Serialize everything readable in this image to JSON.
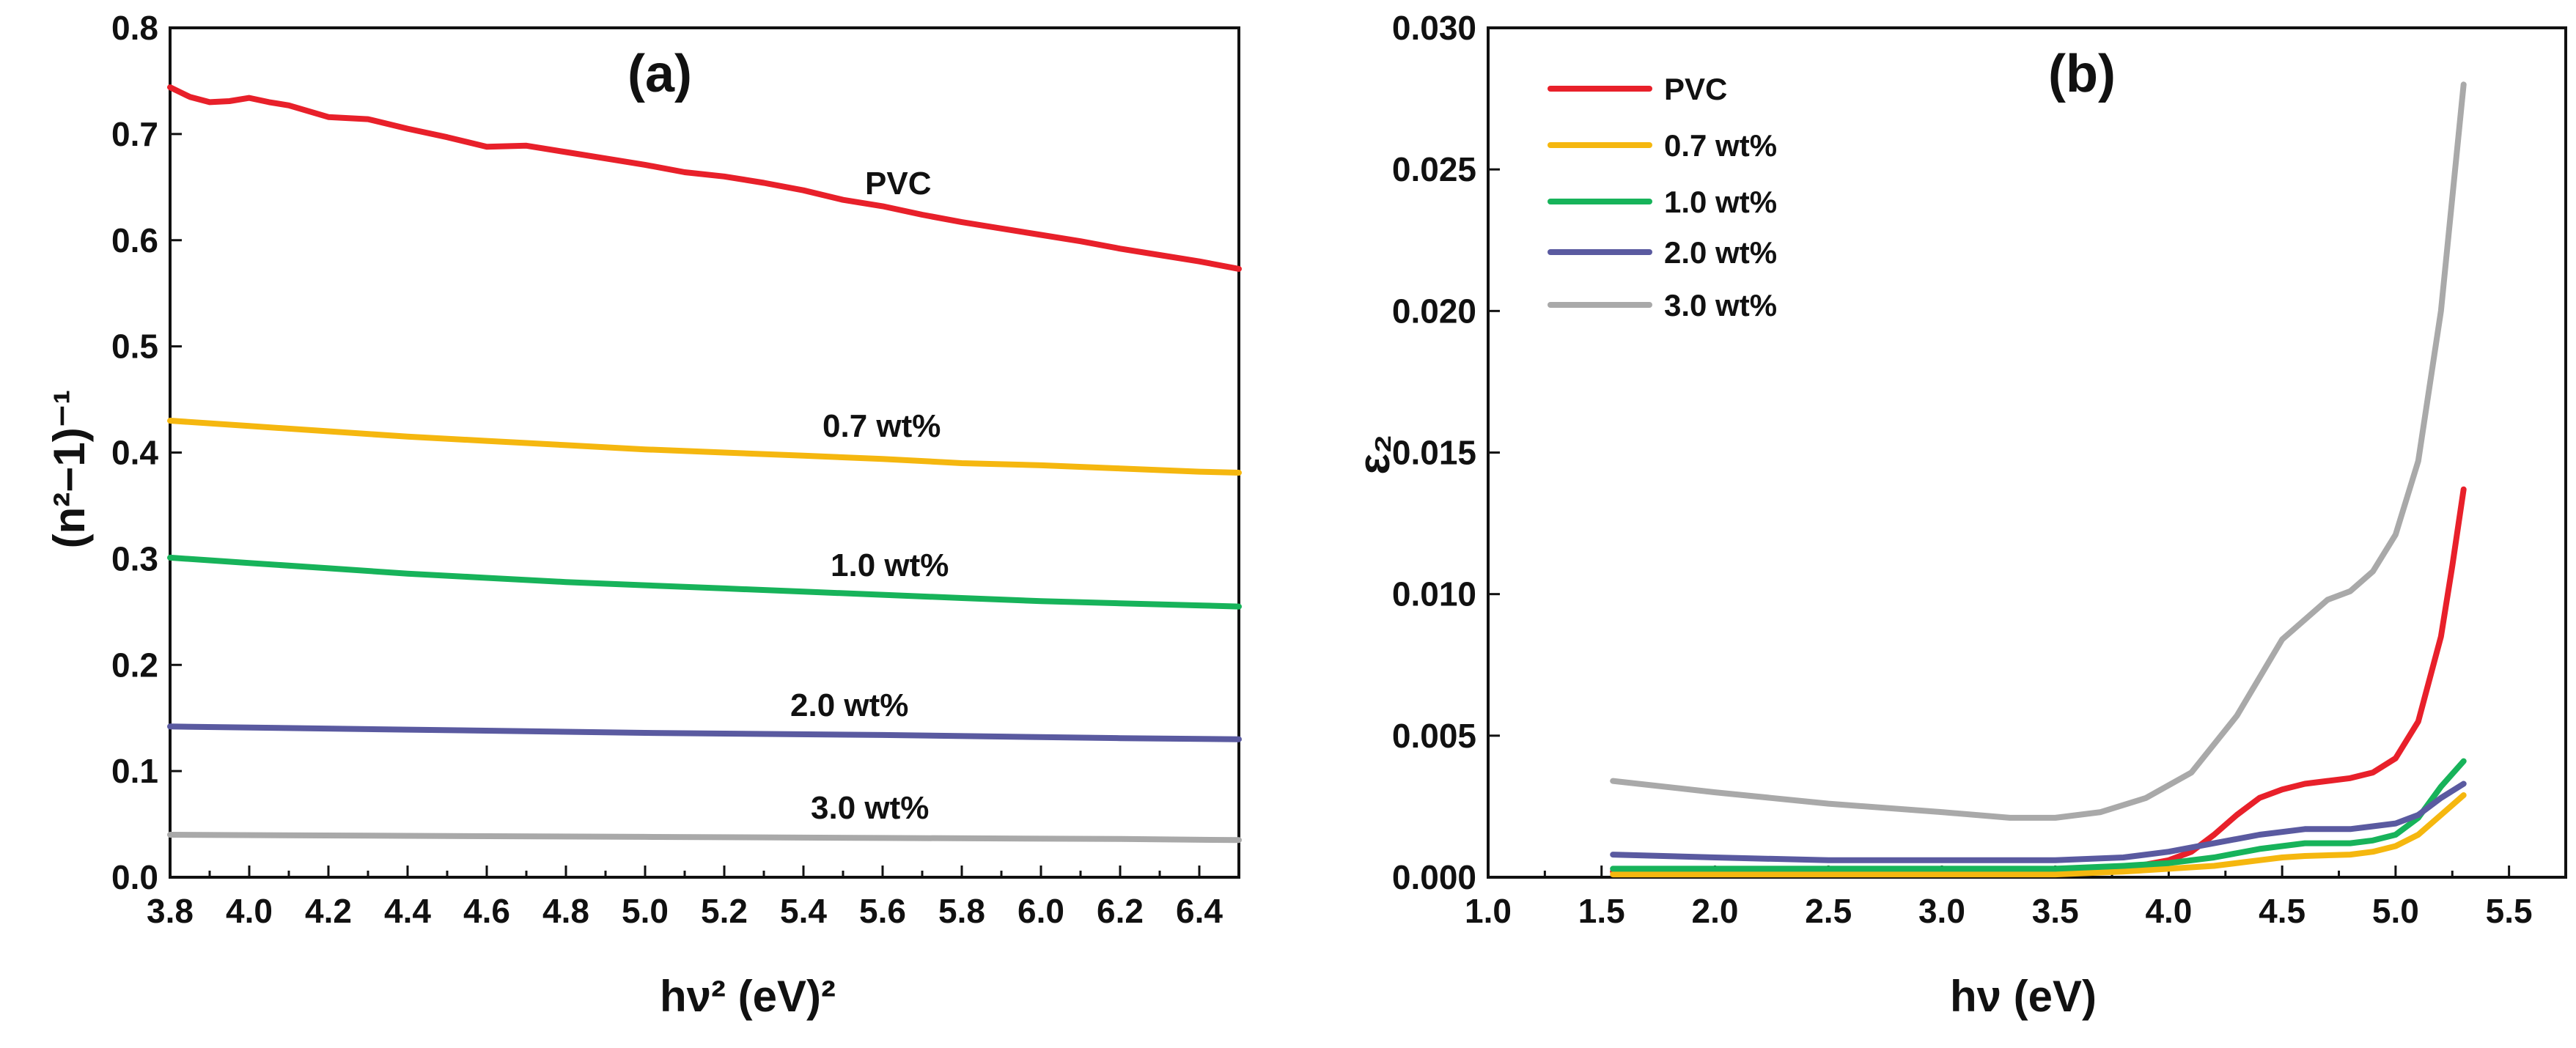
{
  "chart_data": [
    {
      "type": "line",
      "panel_label": "(a)",
      "title": "",
      "xlabel": "hν² (eV)²",
      "ylabel": "(n²−1)⁻¹",
      "xlim": [
        3.8,
        6.5
      ],
      "ylim": [
        0.0,
        0.8
      ],
      "x_ticks": [
        "3.8",
        "4.0",
        "4.2",
        "4.4",
        "4.6",
        "4.8",
        "5.0",
        "5.2",
        "5.4",
        "5.6",
        "5.8",
        "6.0",
        "6.2",
        "6.4"
      ],
      "y_ticks": [
        "0.0",
        "0.1",
        "0.2",
        "0.3",
        "0.4",
        "0.5",
        "0.6",
        "0.7",
        "0.8"
      ],
      "series": [
        {
          "name": "PVC",
          "color": "#e8202a",
          "x": [
            3.8,
            3.85,
            3.9,
            3.95,
            4.0,
            4.05,
            4.1,
            4.2,
            4.3,
            4.4,
            4.5,
            4.6,
            4.7,
            4.8,
            4.9,
            5.0,
            5.1,
            5.2,
            5.3,
            5.4,
            5.5,
            5.6,
            5.7,
            5.8,
            5.9,
            6.0,
            6.1,
            6.2,
            6.3,
            6.4,
            6.5
          ],
          "values": [
            0.744,
            0.735,
            0.73,
            0.731,
            0.734,
            0.73,
            0.727,
            0.716,
            0.714,
            0.705,
            0.697,
            0.688,
            0.689,
            0.683,
            0.677,
            0.671,
            0.664,
            0.66,
            0.654,
            0.647,
            0.638,
            0.632,
            0.624,
            0.617,
            0.611,
            0.605,
            0.599,
            0.592,
            0.586,
            0.58,
            0.573
          ]
        },
        {
          "name": "0.7 wt%",
          "color": "#f5b70f",
          "x": [
            3.8,
            4.0,
            4.2,
            4.4,
            4.6,
            4.8,
            5.0,
            5.2,
            5.4,
            5.6,
            5.8,
            6.0,
            6.2,
            6.4,
            6.5
          ],
          "values": [
            0.43,
            0.425,
            0.42,
            0.415,
            0.411,
            0.407,
            0.403,
            0.4,
            0.397,
            0.394,
            0.39,
            0.388,
            0.385,
            0.382,
            0.381
          ]
        },
        {
          "name": "1.0 wt%",
          "color": "#17b35a",
          "x": [
            3.8,
            4.0,
            4.2,
            4.4,
            4.6,
            4.8,
            5.0,
            5.2,
            5.4,
            5.6,
            5.8,
            6.0,
            6.2,
            6.4,
            6.5
          ],
          "values": [
            0.301,
            0.296,
            0.291,
            0.286,
            0.282,
            0.278,
            0.275,
            0.272,
            0.269,
            0.266,
            0.263,
            0.26,
            0.258,
            0.256,
            0.255
          ]
        },
        {
          "name": "2.0 wt%",
          "color": "#5a5aa0",
          "x": [
            3.8,
            4.4,
            5.0,
            5.6,
            6.2,
            6.5
          ],
          "values": [
            0.142,
            0.139,
            0.136,
            0.134,
            0.131,
            0.13
          ]
        },
        {
          "name": "3.0 wt%",
          "color": "#a9a9a9",
          "x": [
            3.8,
            4.4,
            5.0,
            5.6,
            6.2,
            6.5
          ],
          "values": [
            0.04,
            0.039,
            0.038,
            0.037,
            0.036,
            0.035
          ]
        }
      ],
      "annotations": [
        "PVC",
        "0.7 wt%",
        "1.0 wt%",
        "2.0 wt%",
        "3.0 wt%"
      ]
    },
    {
      "type": "line",
      "panel_label": "(b)",
      "title": "",
      "xlabel": "hν (eV)",
      "ylabel": "ε₂",
      "xlim": [
        1.0,
        5.75
      ],
      "ylim": [
        0.0,
        0.03
      ],
      "x_ticks": [
        "1.0",
        "1.5",
        "2.0",
        "2.5",
        "3.0",
        "3.5",
        "4.0",
        "4.5",
        "5.0",
        "5.5"
      ],
      "y_ticks": [
        "0.000",
        "0.005",
        "0.010",
        "0.015",
        "0.020",
        "0.025",
        "0.030"
      ],
      "legend": {
        "position": "top-left",
        "entries": [
          "PVC",
          "0.7 wt%",
          "1.0 wt%",
          "2.0 wt%",
          "3.0 wt%"
        ]
      },
      "series": [
        {
          "name": "PVC",
          "color": "#e8202a",
          "x": [
            1.55,
            2.0,
            2.5,
            3.0,
            3.5,
            3.8,
            4.0,
            4.1,
            4.2,
            4.3,
            4.4,
            4.5,
            4.6,
            4.7,
            4.8,
            4.9,
            5.0,
            5.1,
            5.2,
            5.25,
            5.3
          ],
          "values": [
            0.0002,
            0.0002,
            0.0002,
            0.0002,
            0.0002,
            0.0003,
            0.0006,
            0.0009,
            0.0015,
            0.0022,
            0.0028,
            0.0031,
            0.0033,
            0.0034,
            0.0035,
            0.0037,
            0.0042,
            0.0055,
            0.0085,
            0.011,
            0.0137
          ]
        },
        {
          "name": "0.7 wt%",
          "color": "#f5b70f",
          "x": [
            1.55,
            2.0,
            2.5,
            3.0,
            3.5,
            3.8,
            4.0,
            4.2,
            4.4,
            4.5,
            4.6,
            4.8,
            4.9,
            5.0,
            5.1,
            5.2,
            5.3
          ],
          "values": [
            0.0001,
            0.0001,
            0.0001,
            0.0001,
            0.0001,
            0.0002,
            0.0003,
            0.0004,
            0.0006,
            0.0007,
            0.00075,
            0.0008,
            0.0009,
            0.0011,
            0.0015,
            0.0022,
            0.0029
          ]
        },
        {
          "name": "1.0 wt%",
          "color": "#17b35a",
          "x": [
            1.55,
            2.0,
            2.5,
            3.0,
            3.5,
            3.8,
            4.0,
            4.2,
            4.4,
            4.5,
            4.6,
            4.8,
            4.9,
            5.0,
            5.1,
            5.2,
            5.3
          ],
          "values": [
            0.0003,
            0.0003,
            0.0003,
            0.0003,
            0.0003,
            0.0004,
            0.0005,
            0.0007,
            0.001,
            0.0011,
            0.0012,
            0.0012,
            0.0013,
            0.0015,
            0.0021,
            0.0032,
            0.0041
          ]
        },
        {
          "name": "2.0 wt%",
          "color": "#5a5aa0",
          "x": [
            1.55,
            2.0,
            2.5,
            3.0,
            3.5,
            3.8,
            4.0,
            4.2,
            4.4,
            4.5,
            4.6,
            4.8,
            4.9,
            5.0,
            5.1,
            5.2,
            5.3
          ],
          "values": [
            0.0008,
            0.0007,
            0.0006,
            0.0006,
            0.0006,
            0.0007,
            0.0009,
            0.0012,
            0.0015,
            0.0016,
            0.0017,
            0.0017,
            0.0018,
            0.0019,
            0.0022,
            0.0028,
            0.0033
          ]
        },
        {
          "name": "3.0 wt%",
          "color": "#a9a9a9",
          "x": [
            1.55,
            2.0,
            2.5,
            3.0,
            3.3,
            3.5,
            3.7,
            3.9,
            4.1,
            4.3,
            4.5,
            4.7,
            4.8,
            4.9,
            5.0,
            5.1,
            5.2,
            5.3
          ],
          "values": [
            0.0034,
            0.003,
            0.0026,
            0.0023,
            0.0021,
            0.0021,
            0.0023,
            0.0028,
            0.0037,
            0.0057,
            0.0084,
            0.0098,
            0.0101,
            0.0108,
            0.0121,
            0.0147,
            0.02,
            0.028
          ]
        }
      ]
    }
  ]
}
